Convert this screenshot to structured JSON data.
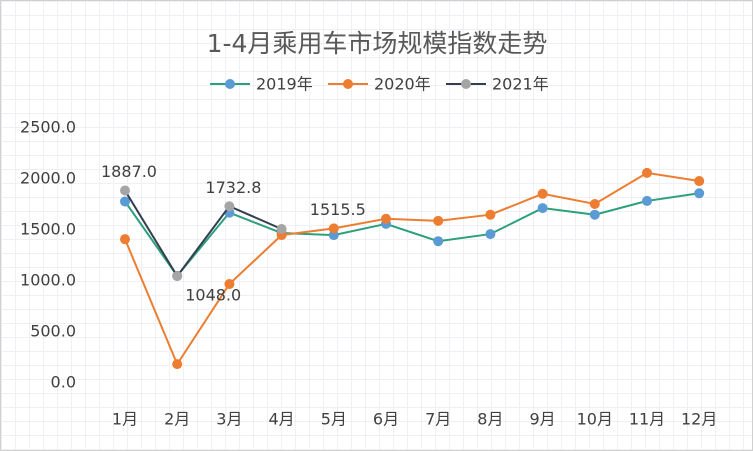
{
  "chart_data": {
    "type": "line",
    "title": "1-4月乘用车市场规模指数走势",
    "categories": [
      "1月",
      "2月",
      "3月",
      "4月",
      "5月",
      "6月",
      "7月",
      "8月",
      "9月",
      "10月",
      "11月",
      "12月"
    ],
    "series": [
      {
        "name": "2019年",
        "color": "#2ca07a",
        "marker_color": "#5b9bd5",
        "values": [
          1780,
          1050,
          1670,
          1470,
          1450,
          1560,
          1390,
          1460,
          1715,
          1650,
          1785,
          1860
        ]
      },
      {
        "name": "2020年",
        "color": "#ed7d31",
        "marker_color": "#ed7d31",
        "values": [
          1410,
          185,
          970,
          1450,
          1515.5,
          1610,
          1590,
          1650,
          1855,
          1755,
          2060,
          1980
        ],
        "value_labels": [
          null,
          null,
          null,
          null,
          "1515.5",
          null,
          null,
          null,
          null,
          null,
          null,
          null
        ]
      },
      {
        "name": "2021年",
        "color": "#333f50",
        "marker_color": "#a5a5a5",
        "values": [
          1887,
          1048,
          1732.8,
          1510,
          null,
          null,
          null,
          null,
          null,
          null,
          null,
          null
        ],
        "value_labels": [
          "1887.0",
          "1048.0",
          "1732.8",
          null,
          null,
          null,
          null,
          null,
          null,
          null,
          null,
          null
        ]
      }
    ],
    "ylim": [
      0,
      2500
    ],
    "yticks": [
      {
        "value": 0,
        "label": "0.0"
      },
      {
        "value": 500,
        "label": "500.0"
      },
      {
        "value": 1000,
        "label": "1000.0"
      },
      {
        "value": 1500,
        "label": "1500.0"
      },
      {
        "value": 2000,
        "label": "2000.0"
      },
      {
        "value": 2500,
        "label": "2500.0"
      }
    ],
    "legend": "top"
  }
}
